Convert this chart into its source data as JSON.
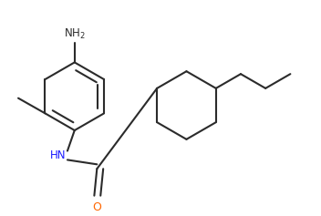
{
  "bg_color": "#ffffff",
  "line_color": "#2b2b2b",
  "line_width": 1.5,
  "text_nh2": "NH₂",
  "text_hn": "HN",
  "text_o": "O",
  "color_hn": "#1a1aff",
  "color_o": "#ff6600",
  "color_black": "#2b2b2b",
  "figsize": [
    3.52,
    2.37
  ],
  "dpi": 100
}
